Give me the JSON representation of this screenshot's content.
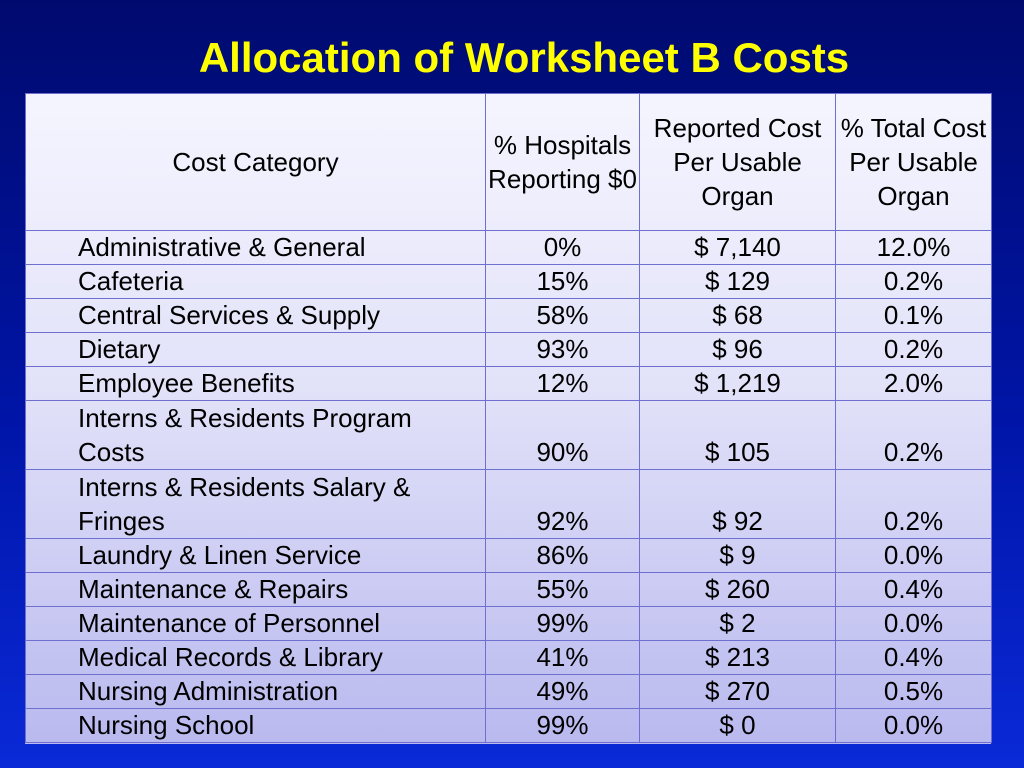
{
  "title": "Allocation of Worksheet B Costs",
  "table": {
    "headers": {
      "category": "Cost Category",
      "pct_zero": "% Hospitals Reporting $0",
      "reported_cost": "Reported Cost Per Usable Organ",
      "pct_total": "% Total Cost Per Usable Organ"
    },
    "rows": [
      {
        "category": "Administrative & General",
        "pct_zero": "0%",
        "reported_cost": "$  7,140",
        "pct_total": "12.0%"
      },
      {
        "category": "Cafeteria",
        "pct_zero": "15%",
        "reported_cost": "$  129",
        "pct_total": "0.2%"
      },
      {
        "category": "Central Services & Supply",
        "pct_zero": "58%",
        "reported_cost": "$  68",
        "pct_total": "0.1%"
      },
      {
        "category": "Dietary",
        "pct_zero": "93%",
        "reported_cost": "$  96",
        "pct_total": "0.2%"
      },
      {
        "category": "Employee Benefits",
        "pct_zero": "12%",
        "reported_cost": "$  1,219",
        "pct_total": "2.0%"
      },
      {
        "category": "Interns & Residents Program Costs",
        "pct_zero": "90%",
        "reported_cost": "$  105",
        "pct_total": "0.2%"
      },
      {
        "category": "Interns & Residents Salary & Fringes",
        "pct_zero": "92%",
        "reported_cost": "$  92",
        "pct_total": "0.2%"
      },
      {
        "category": "Laundry & Linen Service",
        "pct_zero": "86%",
        "reported_cost": "$  9",
        "pct_total": "0.0%"
      },
      {
        "category": "Maintenance & Repairs",
        "pct_zero": "55%",
        "reported_cost": "$  260",
        "pct_total": "0.4%"
      },
      {
        "category": "Maintenance of Personnel",
        "pct_zero": "99%",
        "reported_cost": "$  2",
        "pct_total": "0.0%"
      },
      {
        "category": "Medical Records & Library",
        "pct_zero": "41%",
        "reported_cost": "$  213",
        "pct_total": "0.4%"
      },
      {
        "category": "Nursing Administration",
        "pct_zero": "49%",
        "reported_cost": "$  270",
        "pct_total": "0.5%"
      },
      {
        "category": "Nursing School",
        "pct_zero": "99%",
        "reported_cost": "$  0",
        "pct_total": "0.0%"
      }
    ]
  }
}
